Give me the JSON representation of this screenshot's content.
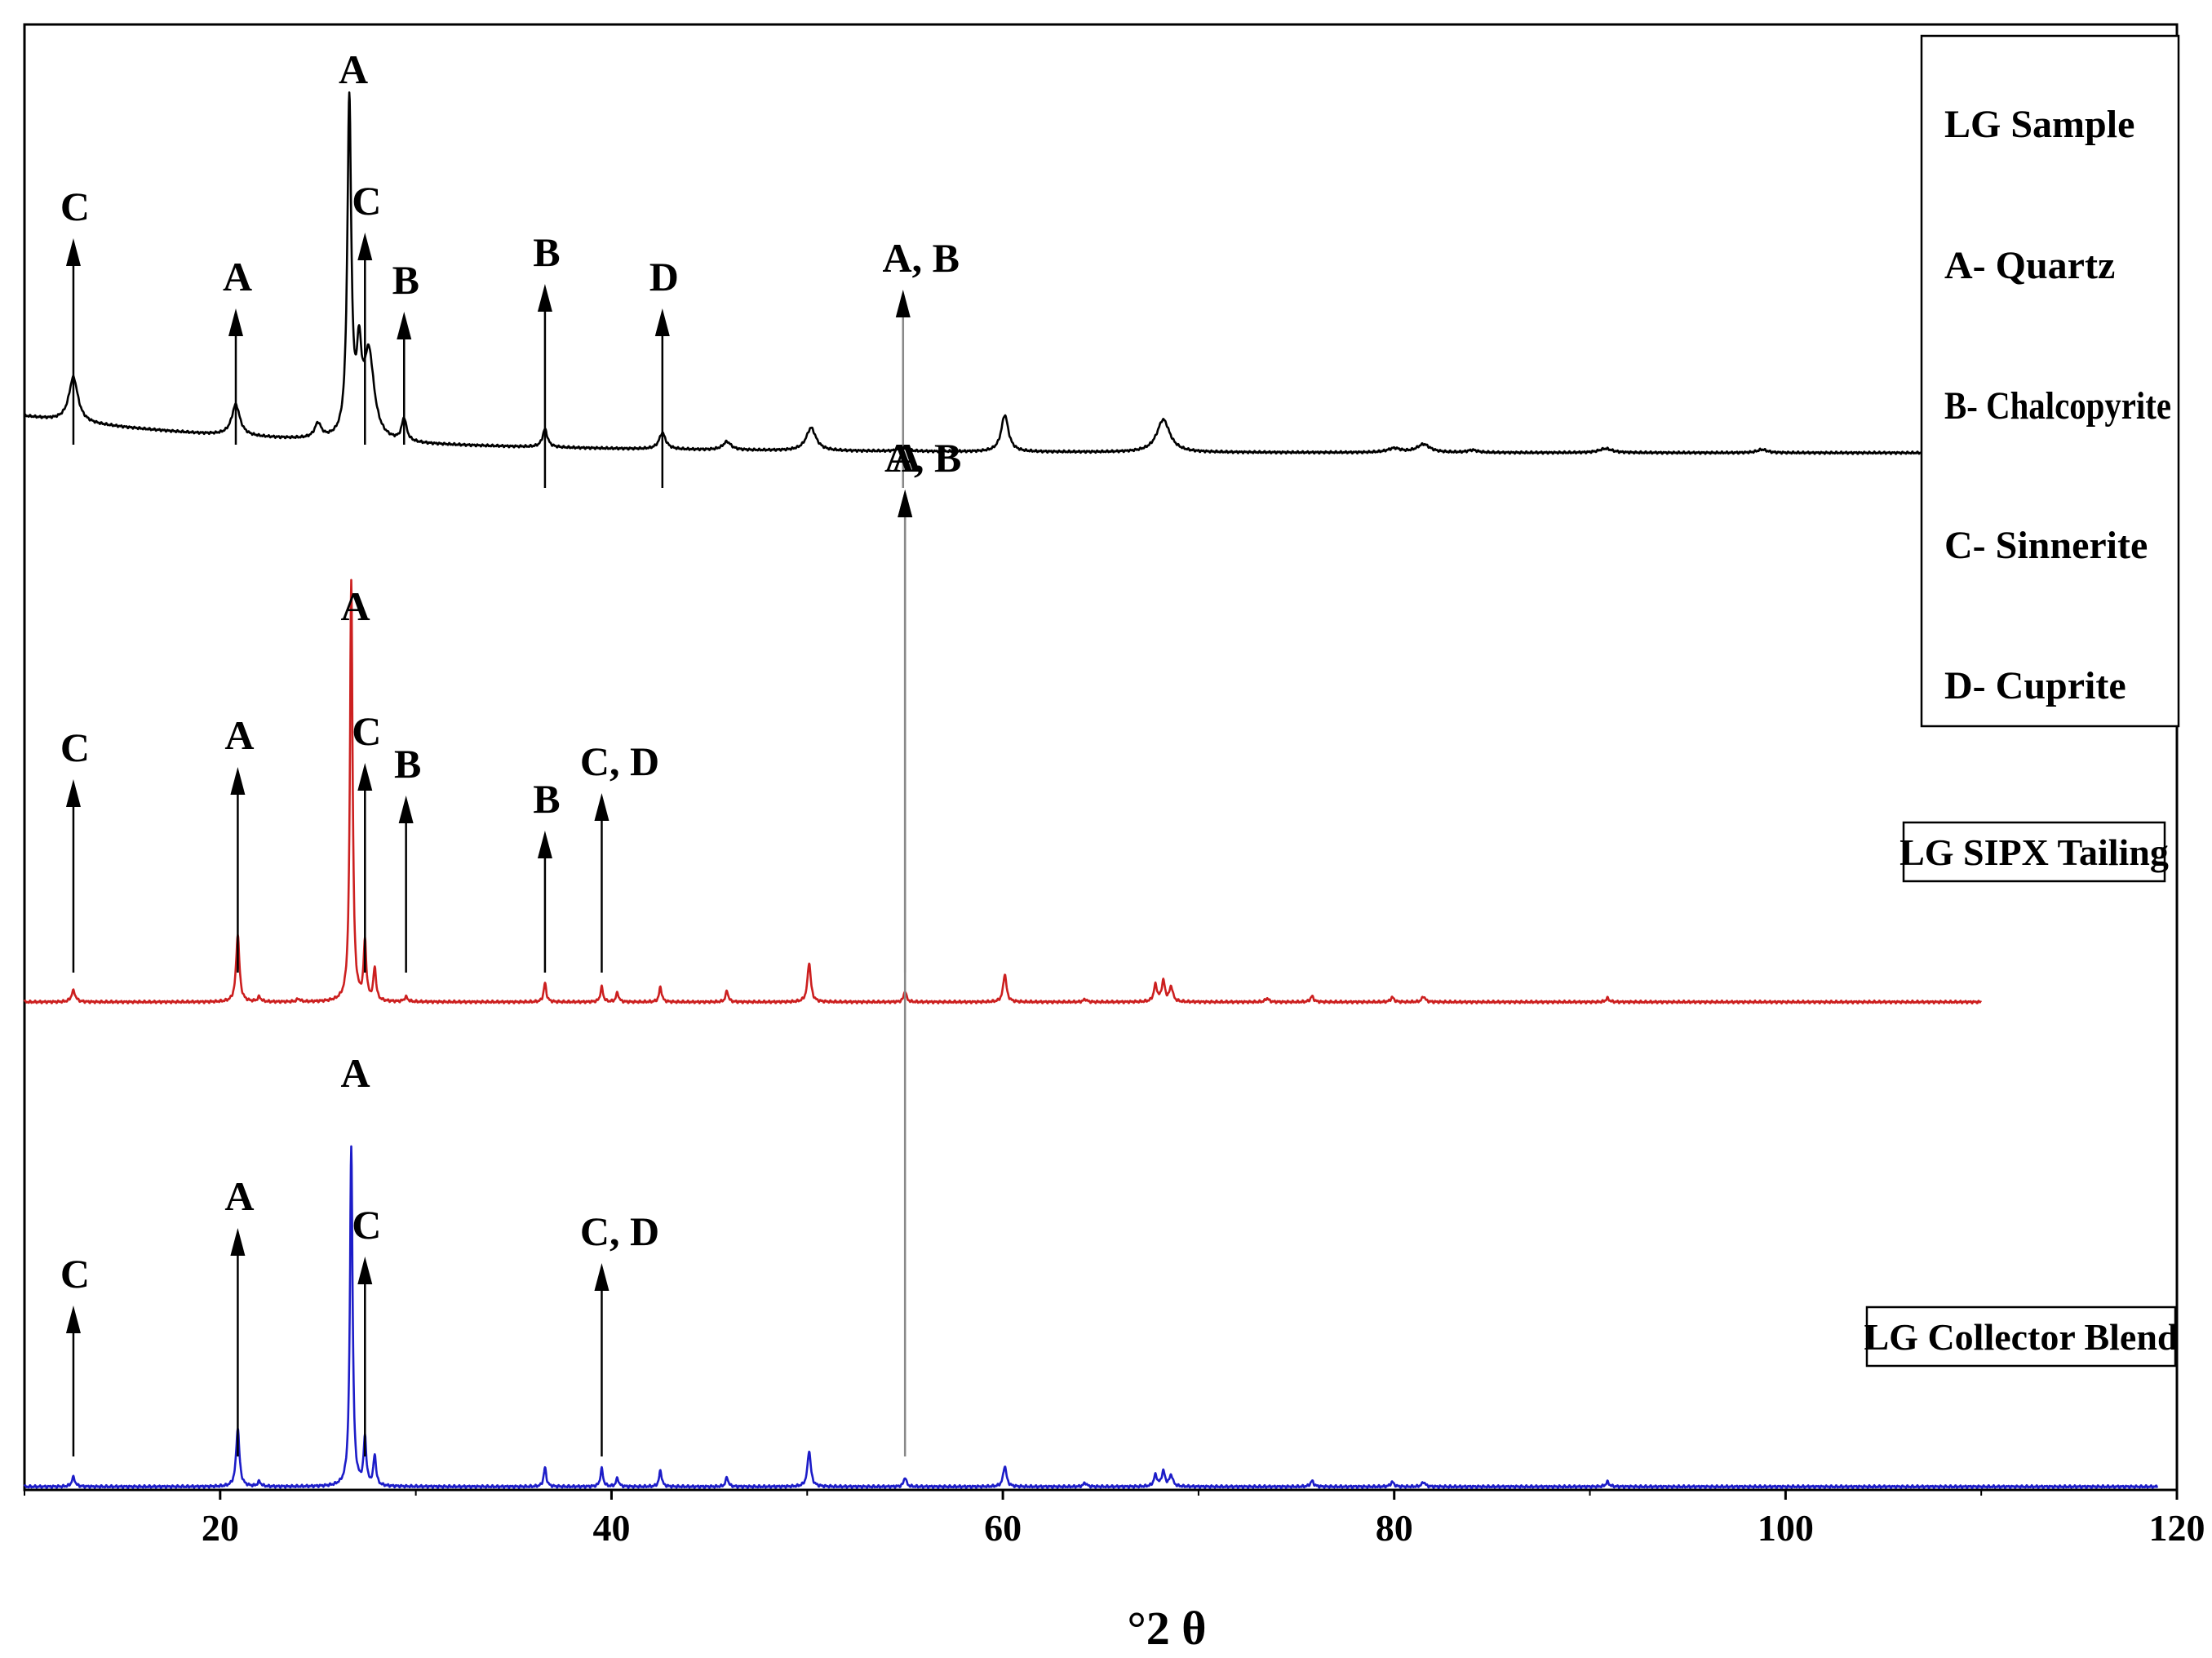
{
  "chart_data": {
    "type": "line",
    "xlabel": "°2 θ",
    "xlim": [
      10,
      120
    ],
    "xticks": [
      20,
      40,
      60,
      80,
      100,
      120
    ],
    "grid": false,
    "legend": {
      "placement": "top-right",
      "entries": [
        "LG Sample",
        "A- Quartz",
        "B- Chalcopyrite",
        "C- Sinnerite",
        "D- Cuprite"
      ]
    },
    "series": [
      {
        "name": "LG Sample",
        "color": "#000000",
        "x_range": [
          10,
          119
        ],
        "peaks": [
          {
            "x": 12.5,
            "h": 0.55,
            "w": 0.28
          },
          {
            "x": 20.8,
            "h": 0.38,
            "w": 0.25
          },
          {
            "x": 25.0,
            "h": 0.18,
            "w": 0.2
          },
          {
            "x": 26.6,
            "h": 4.1,
            "w": 0.12
          },
          {
            "x": 27.1,
            "h": 0.9,
            "w": 0.15
          },
          {
            "x": 27.6,
            "h": 1.05,
            "w": 0.32
          },
          {
            "x": 29.4,
            "h": 0.28,
            "w": 0.15
          },
          {
            "x": 36.6,
            "h": 0.22,
            "w": 0.15
          },
          {
            "x": 42.6,
            "h": 0.2,
            "w": 0.2
          },
          {
            "x": 45.9,
            "h": 0.1,
            "w": 0.25
          },
          {
            "x": 50.2,
            "h": 0.28,
            "w": 0.3
          },
          {
            "x": 54.9,
            "h": 0.05,
            "w": 0.25
          },
          {
            "x": 60.1,
            "h": 0.45,
            "w": 0.22
          },
          {
            "x": 68.2,
            "h": 0.4,
            "w": 0.4
          },
          {
            "x": 80.0,
            "h": 0.05,
            "w": 0.4
          },
          {
            "x": 81.5,
            "h": 0.1,
            "w": 0.4
          },
          {
            "x": 84.0,
            "h": 0.03,
            "w": 0.3
          },
          {
            "x": 90.8,
            "h": 0.05,
            "w": 0.4
          },
          {
            "x": 98.8,
            "h": 0.04,
            "w": 0.3
          }
        ],
        "annotations": [
          {
            "label": "C",
            "x": 12.5
          },
          {
            "label": "A",
            "x": 20.8
          },
          {
            "label": "A",
            "x": 26.6
          },
          {
            "label": "C",
            "x": 27.4
          },
          {
            "label": "B",
            "x": 29.4
          },
          {
            "label": "B",
            "x": 36.6
          },
          {
            "label": "D",
            "x": 42.6
          },
          {
            "label": "A, B",
            "x": 54.9
          }
        ]
      },
      {
        "name": "LG SIPX Tailing",
        "color": "#cc1f1f",
        "x_range": [
          10,
          110
        ],
        "peaks": [
          {
            "x": 12.5,
            "h": 0.12,
            "w": 0.12
          },
          {
            "x": 20.9,
            "h": 0.72,
            "w": 0.1
          },
          {
            "x": 22.0,
            "h": 0.05,
            "w": 0.1
          },
          {
            "x": 24.0,
            "h": 0.03,
            "w": 0.1
          },
          {
            "x": 26.7,
            "h": 4.5,
            "w": 0.08
          },
          {
            "x": 27.4,
            "h": 0.62,
            "w": 0.08
          },
          {
            "x": 27.9,
            "h": 0.35,
            "w": 0.08
          },
          {
            "x": 29.5,
            "h": 0.05,
            "w": 0.1
          },
          {
            "x": 36.6,
            "h": 0.2,
            "w": 0.08
          },
          {
            "x": 39.5,
            "h": 0.16,
            "w": 0.08
          },
          {
            "x": 40.3,
            "h": 0.1,
            "w": 0.08
          },
          {
            "x": 42.5,
            "h": 0.16,
            "w": 0.08
          },
          {
            "x": 45.9,
            "h": 0.12,
            "w": 0.08
          },
          {
            "x": 50.1,
            "h": 0.42,
            "w": 0.1
          },
          {
            "x": 55.0,
            "h": 0.12,
            "w": 0.08
          },
          {
            "x": 60.1,
            "h": 0.3,
            "w": 0.1
          },
          {
            "x": 64.2,
            "h": 0.03,
            "w": 0.1
          },
          {
            "x": 67.8,
            "h": 0.18,
            "w": 0.1
          },
          {
            "x": 68.2,
            "h": 0.22,
            "w": 0.1
          },
          {
            "x": 68.6,
            "h": 0.16,
            "w": 0.1
          },
          {
            "x": 73.5,
            "h": 0.04,
            "w": 0.1
          },
          {
            "x": 75.8,
            "h": 0.06,
            "w": 0.1
          },
          {
            "x": 79.9,
            "h": 0.05,
            "w": 0.1
          },
          {
            "x": 81.5,
            "h": 0.06,
            "w": 0.1
          },
          {
            "x": 90.9,
            "h": 0.04,
            "w": 0.1
          }
        ],
        "annotations": [
          {
            "label": "C",
            "x": 12.5
          },
          {
            "label": "A",
            "x": 20.9
          },
          {
            "label": "A",
            "x": 26.7
          },
          {
            "label": "C",
            "x": 27.4
          },
          {
            "label": "B",
            "x": 29.5
          },
          {
            "label": "B",
            "x": 36.6
          },
          {
            "label": "C, D",
            "x": 39.5
          },
          {
            "label": "A, B",
            "x": 55.0
          }
        ]
      },
      {
        "name": "LG Collector Blend",
        "color": "#1c1cc8",
        "x_range": [
          10,
          119
        ],
        "peaks": [
          {
            "x": 12.5,
            "h": 0.1,
            "w": 0.1
          },
          {
            "x": 20.9,
            "h": 0.62,
            "w": 0.1
          },
          {
            "x": 22.0,
            "h": 0.05,
            "w": 0.1
          },
          {
            "x": 26.7,
            "h": 3.6,
            "w": 0.08
          },
          {
            "x": 27.4,
            "h": 0.5,
            "w": 0.08
          },
          {
            "x": 27.9,
            "h": 0.32,
            "w": 0.08
          },
          {
            "x": 36.6,
            "h": 0.2,
            "w": 0.08
          },
          {
            "x": 39.5,
            "h": 0.19,
            "w": 0.08
          },
          {
            "x": 40.3,
            "h": 0.09,
            "w": 0.08
          },
          {
            "x": 42.5,
            "h": 0.17,
            "w": 0.08
          },
          {
            "x": 45.9,
            "h": 0.1,
            "w": 0.08
          },
          {
            "x": 50.1,
            "h": 0.38,
            "w": 0.1
          },
          {
            "x": 55.0,
            "h": 0.1,
            "w": 0.08
          },
          {
            "x": 60.1,
            "h": 0.22,
            "w": 0.1
          },
          {
            "x": 64.2,
            "h": 0.04,
            "w": 0.1
          },
          {
            "x": 67.8,
            "h": 0.12,
            "w": 0.1
          },
          {
            "x": 68.2,
            "h": 0.16,
            "w": 0.1
          },
          {
            "x": 68.6,
            "h": 0.12,
            "w": 0.1
          },
          {
            "x": 75.8,
            "h": 0.06,
            "w": 0.1
          },
          {
            "x": 79.9,
            "h": 0.05,
            "w": 0.1
          },
          {
            "x": 81.5,
            "h": 0.05,
            "w": 0.1
          },
          {
            "x": 90.9,
            "h": 0.05,
            "w": 0.1
          }
        ],
        "annotations": [
          {
            "label": "C",
            "x": 12.5
          },
          {
            "label": "A",
            "x": 20.9
          },
          {
            "label": "A",
            "x": 26.7
          },
          {
            "label": "C",
            "x": 27.4
          },
          {
            "label": "C, D",
            "x": 39.5
          },
          {
            "label": "A",
            "x": 55.0
          }
        ]
      }
    ]
  }
}
